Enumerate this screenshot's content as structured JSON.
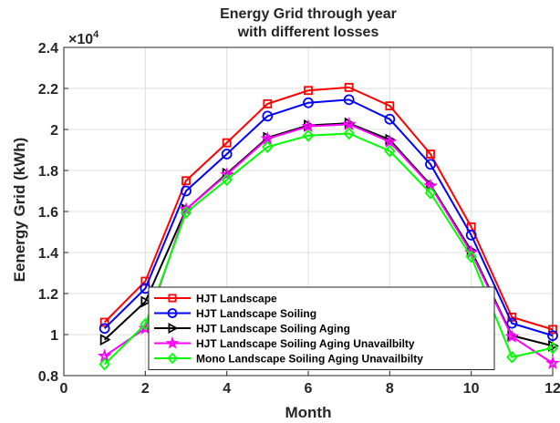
{
  "chart_data": {
    "type": "line",
    "title": [
      "Energy Grid through year",
      "with different losses"
    ],
    "xlabel": "Month",
    "ylabel": "Eenergy Grid (kWh)",
    "y_exponent_label": "×10",
    "y_exponent_power": "4",
    "xlim": [
      0,
      12
    ],
    "ylim": [
      0.8,
      2.4
    ],
    "xticks": [
      0,
      2,
      4,
      6,
      8,
      10,
      12
    ],
    "yticks": [
      0.8,
      1,
      1.2,
      1.4,
      1.6,
      1.8,
      2,
      2.2,
      2.4
    ],
    "ytick_labels": [
      "0.8",
      "1",
      "1.2",
      "1.4",
      "1.6",
      "1.8",
      "2",
      "2.2",
      "2.4"
    ],
    "grid": true,
    "legend_position": "bottom-right",
    "x": [
      1,
      2,
      3,
      4,
      5,
      6,
      7,
      8,
      9,
      10,
      11,
      12
    ],
    "series": [
      {
        "name": "HJT Landscape",
        "color": "#ff0000",
        "marker": "square",
        "values": [
          1.06,
          1.26,
          1.75,
          1.935,
          2.125,
          2.19,
          2.205,
          2.115,
          1.88,
          1.525,
          1.085,
          1.025
        ]
      },
      {
        "name": "HJT Landscape Soiling",
        "color": "#0000ff",
        "marker": "circle",
        "values": [
          1.03,
          1.225,
          1.7,
          1.88,
          2.065,
          2.13,
          2.145,
          2.05,
          1.83,
          1.485,
          1.055,
          0.995
        ]
      },
      {
        "name": "HJT Landscape Soiling Aging",
        "color": "#000000",
        "marker": "triangle-right",
        "values": [
          0.975,
          1.16,
          1.61,
          1.785,
          1.96,
          2.02,
          2.03,
          1.95,
          1.73,
          1.41,
          0.995,
          0.945
        ]
      },
      {
        "name": "HJT Landscape Soiling Aging Unavailbilty",
        "color": "#ff00ff",
        "marker": "star",
        "values": [
          0.895,
          1.03,
          1.61,
          1.78,
          1.955,
          2.015,
          2.025,
          1.94,
          1.725,
          1.4,
          0.99,
          0.86
        ]
      },
      {
        "name": "Mono Landscape Soiling Aging Unavailbilty",
        "color": "#00ff00",
        "marker": "diamond",
        "values": [
          0.855,
          1.05,
          1.595,
          1.755,
          1.915,
          1.97,
          1.98,
          1.895,
          1.69,
          1.38,
          0.89,
          0.935
        ]
      }
    ]
  }
}
